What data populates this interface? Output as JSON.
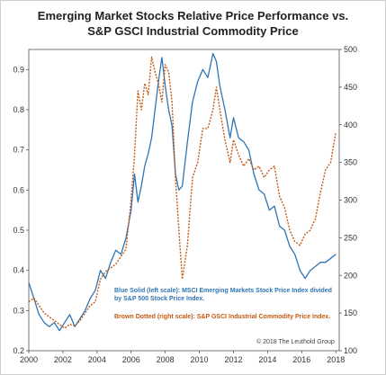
{
  "chart_data": {
    "type": "line",
    "title_line1": "Emerging Market Stocks Relative Price Performance vs.",
    "title_line2": "S&P GSCI Industrial Commodity Price",
    "x_ticks": [
      "2000",
      "2002",
      "2004",
      "2006",
      "2008",
      "2010",
      "2012",
      "2014",
      "2016",
      "2018"
    ],
    "y_left_ticks": [
      "0.2",
      "0.3",
      "0.4",
      "0.5",
      "0.6",
      "0.7",
      "0.8",
      "0.9"
    ],
    "y_right_ticks": [
      "100",
      "150",
      "200",
      "250",
      "300",
      "350",
      "400",
      "450",
      "500"
    ],
    "xlim": [
      2000,
      2018.2
    ],
    "ylim_left": [
      0.2,
      0.95
    ],
    "ylim_right": [
      100,
      500
    ],
    "grid": false,
    "annotation_blue_line1": "Blue Solid (left scale): MSCI Emerging Markets Stock Price Index divided",
    "annotation_blue_line2": "by S&P 500 Stock Price Index.",
    "annotation_brown": "Brown Dotted (right scale): S&P GSCI Industrial Commodity Price Index.",
    "copyright": "© 2018 The Leuthold Group",
    "colors": {
      "blue": "#2e75b6",
      "brown": "#c55a11"
    },
    "series": [
      {
        "axis": "left",
        "style": "solid",
        "x": [
          2000.0,
          2000.3,
          2000.6,
          2000.9,
          2001.2,
          2001.5,
          2001.8,
          2002.1,
          2002.4,
          2002.7,
          2003.0,
          2003.3,
          2003.6,
          2003.9,
          2004.2,
          2004.5,
          2004.8,
          2005.1,
          2005.4,
          2005.7,
          2006.0,
          2006.2,
          2006.4,
          2006.6,
          2006.8,
          2007.0,
          2007.2,
          2007.4,
          2007.6,
          2007.8,
          2008.0,
          2008.2,
          2008.4,
          2008.6,
          2008.8,
          2009.0,
          2009.3,
          2009.6,
          2009.9,
          2010.2,
          2010.5,
          2010.8,
          2011.0,
          2011.2,
          2011.5,
          2011.8,
          2012.0,
          2012.3,
          2012.6,
          2012.9,
          2013.2,
          2013.5,
          2013.8,
          2014.1,
          2014.4,
          2014.7,
          2015.0,
          2015.3,
          2015.6,
          2015.9,
          2016.2,
          2016.5,
          2016.8,
          2017.1,
          2017.4,
          2017.7,
          2018.0
        ],
        "values": [
          0.37,
          0.33,
          0.29,
          0.27,
          0.26,
          0.27,
          0.25,
          0.27,
          0.29,
          0.26,
          0.28,
          0.3,
          0.33,
          0.35,
          0.4,
          0.38,
          0.42,
          0.45,
          0.44,
          0.48,
          0.55,
          0.64,
          0.57,
          0.61,
          0.66,
          0.69,
          0.73,
          0.8,
          0.87,
          0.93,
          0.86,
          0.8,
          0.76,
          0.64,
          0.6,
          0.61,
          0.72,
          0.82,
          0.87,
          0.9,
          0.88,
          0.94,
          0.92,
          0.86,
          0.8,
          0.73,
          0.78,
          0.73,
          0.72,
          0.7,
          0.64,
          0.6,
          0.59,
          0.55,
          0.56,
          0.51,
          0.5,
          0.46,
          0.44,
          0.4,
          0.38,
          0.4,
          0.41,
          0.42,
          0.42,
          0.43,
          0.44
        ]
      },
      {
        "axis": "right",
        "style": "dotted",
        "x": [
          2000.0,
          2000.3,
          2000.6,
          2000.9,
          2001.2,
          2001.5,
          2001.8,
          2002.1,
          2002.4,
          2002.7,
          2003.0,
          2003.3,
          2003.6,
          2003.9,
          2004.2,
          2004.5,
          2004.8,
          2005.1,
          2005.4,
          2005.7,
          2006.0,
          2006.2,
          2006.4,
          2006.6,
          2006.8,
          2007.0,
          2007.2,
          2007.4,
          2007.6,
          2007.8,
          2008.0,
          2008.2,
          2008.4,
          2008.6,
          2008.8,
          2009.0,
          2009.3,
          2009.6,
          2009.9,
          2010.2,
          2010.5,
          2010.8,
          2011.0,
          2011.2,
          2011.5,
          2011.8,
          2012.0,
          2012.3,
          2012.6,
          2012.9,
          2013.2,
          2013.5,
          2013.8,
          2014.1,
          2014.4,
          2014.7,
          2015.0,
          2015.3,
          2015.6,
          2015.9,
          2016.2,
          2016.5,
          2016.8,
          2017.1,
          2017.4,
          2017.7,
          2018.0
        ],
        "values": [
          165,
          170,
          160,
          150,
          145,
          140,
          135,
          130,
          135,
          133,
          140,
          150,
          160,
          165,
          195,
          205,
          210,
          215,
          225,
          235,
          300,
          360,
          445,
          420,
          455,
          440,
          490,
          470,
          455,
          430,
          480,
          470,
          430,
          330,
          260,
          195,
          240,
          330,
          350,
          395,
          395,
          420,
          450,
          420,
          380,
          350,
          380,
          360,
          345,
          355,
          340,
          345,
          330,
          340,
          345,
          305,
          290,
          260,
          245,
          240,
          255,
          260,
          275,
          310,
          340,
          350,
          390
        ]
      }
    ]
  }
}
